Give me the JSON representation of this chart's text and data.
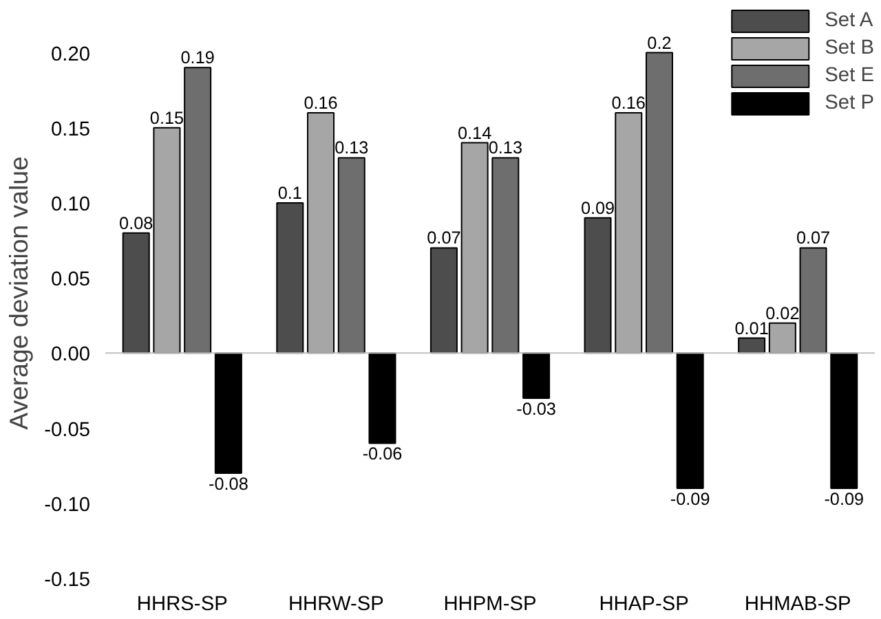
{
  "chart_data": {
    "type": "bar",
    "ylabel": "Average deviation value",
    "categories": [
      "HHRS-SP",
      "HHRW-SP",
      "HHPM-SP",
      "HHAP-SP",
      "HHMAB-SP"
    ],
    "series": [
      {
        "name": "Set A",
        "color": "#4d4d4d",
        "values": [
          0.08,
          0.1,
          0.07,
          0.09,
          0.01
        ]
      },
      {
        "name": "Set B",
        "color": "#a6a6a6",
        "values": [
          0.15,
          0.16,
          0.14,
          0.16,
          0.02
        ]
      },
      {
        "name": "Set E",
        "color": "#6e6e6e",
        "values": [
          0.19,
          0.13,
          0.13,
          0.2,
          0.07
        ]
      },
      {
        "name": "Set P",
        "color": "#000000",
        "values": [
          -0.08,
          -0.06,
          -0.03,
          -0.09,
          -0.09
        ]
      }
    ],
    "ylim": [
      -0.15,
      0.23
    ],
    "yticks": [
      {
        "value": -0.15,
        "label": "-0.15"
      },
      {
        "value": -0.1,
        "label": "-0.10"
      },
      {
        "value": -0.05,
        "label": "-0.05"
      },
      {
        "value": 0,
        "label": "0.00"
      },
      {
        "value": 0.05,
        "label": "0.05"
      },
      {
        "value": 0.1,
        "label": "0.10"
      },
      {
        "value": 0.15,
        "label": "0.15"
      },
      {
        "value": 0.2,
        "label": "0.20"
      }
    ],
    "ref_lines": [
      {
        "axis": "y",
        "value": 0,
        "color": "#bfbfbf"
      }
    ],
    "data_labels": true,
    "grid": false,
    "legend": "top right"
  }
}
